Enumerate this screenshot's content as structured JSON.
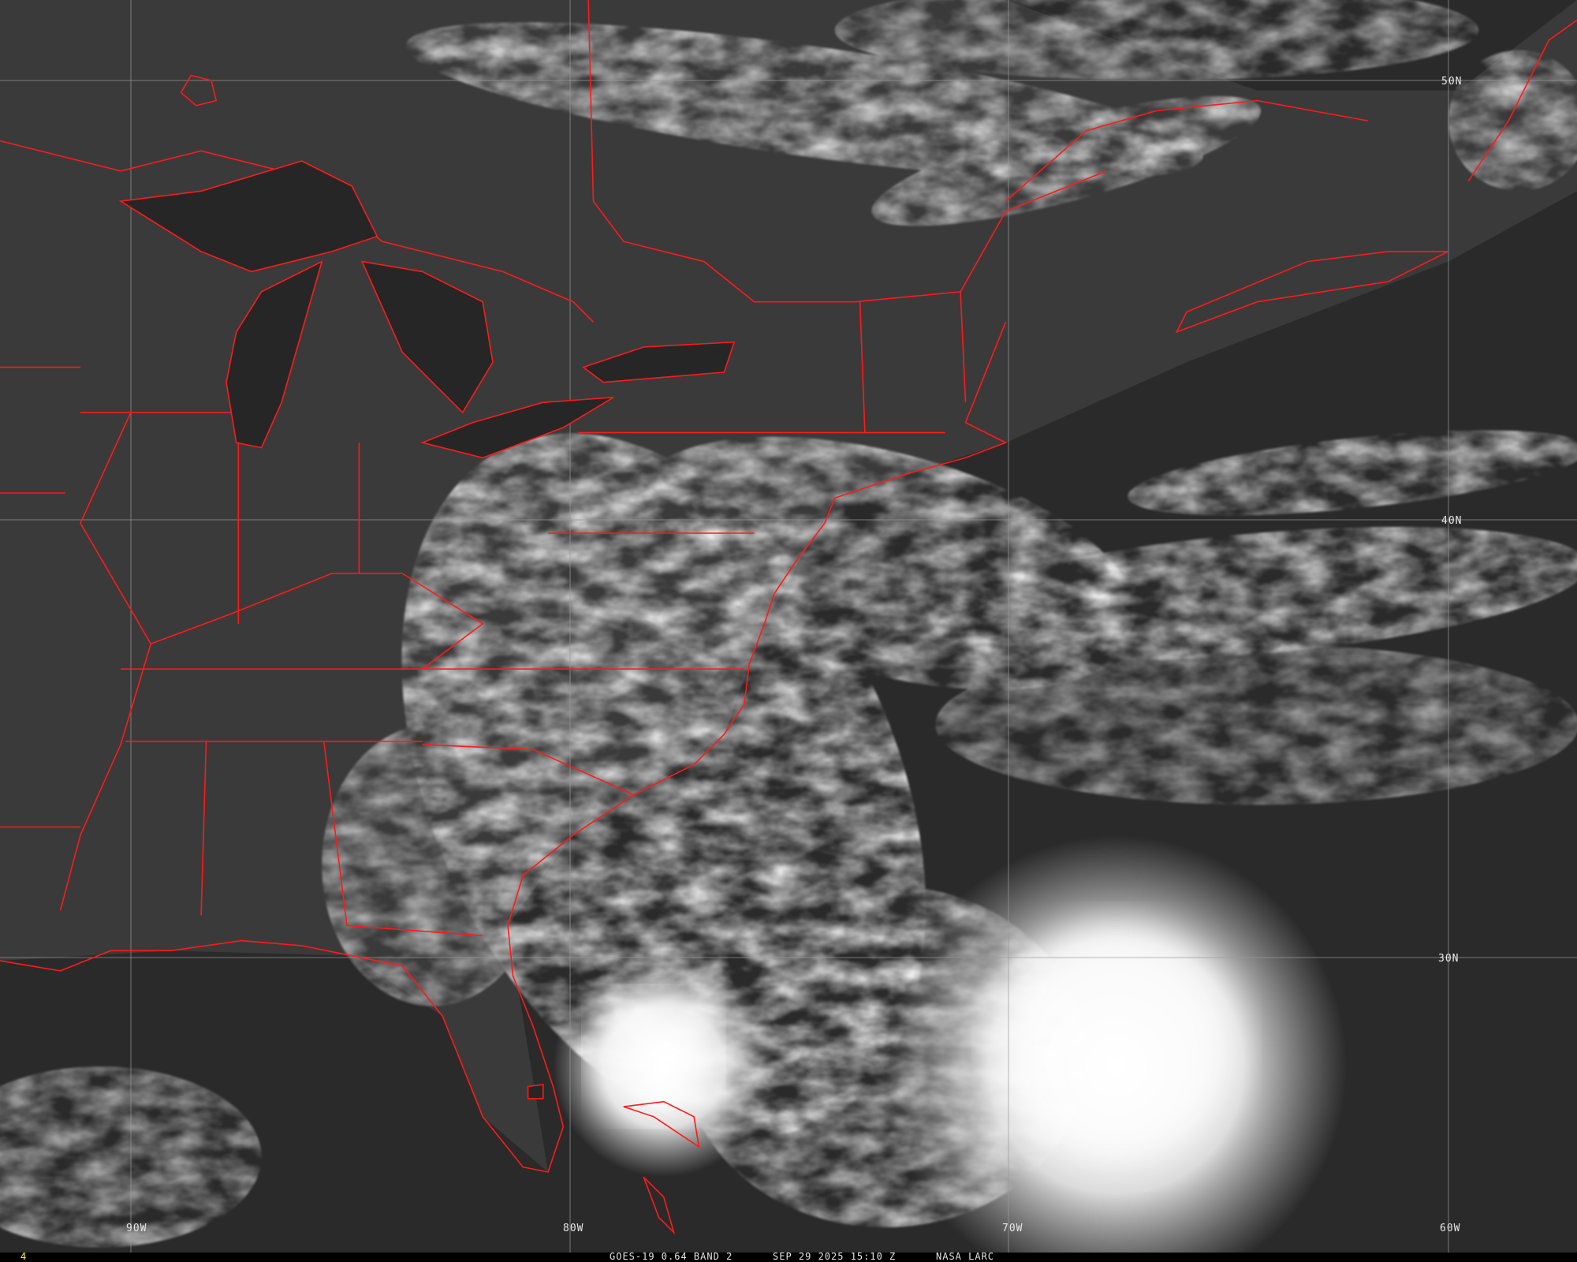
{
  "image": {
    "satellite": "GOES-19",
    "product": "0.64 BAND 2",
    "datetime": "SEP 29 2025 15:10 Z",
    "source": "NASA LARC",
    "frame_number": "4"
  },
  "footer": {
    "left_text": "GOES-19 0.64 BAND 2",
    "center_text": "SEP 29 2025 15:10 Z",
    "right_text": "NASA LARC",
    "frame": "4"
  },
  "grid": {
    "latitude_labels": [
      "50N",
      "40N",
      "30N"
    ],
    "longitude_labels": [
      "90W",
      "80W",
      "70W",
      "60W"
    ]
  },
  "colors": {
    "background": "#2f2f2f",
    "land": "#3a3a3a",
    "water": "#2a2a2a",
    "boundaries": "#ff1a1a",
    "gridlines": "#9a9a9a",
    "frame_number": "#ffff00",
    "clouds": "#f0f0f0"
  }
}
